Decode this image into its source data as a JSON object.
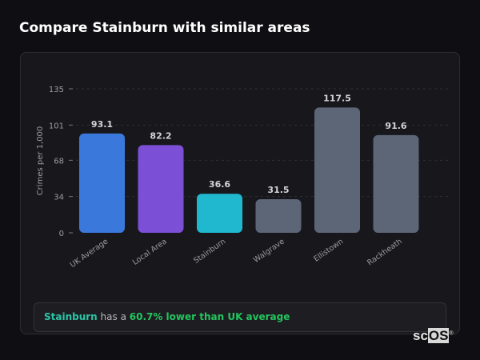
{
  "page_title": "Compare Stainburn with similar areas",
  "chart_data": {
    "type": "bar",
    "title": "",
    "ylabel": "Crimes per 1,000",
    "xlabel": "",
    "ylim": [
      0,
      135
    ],
    "yticks": [
      0,
      34,
      68,
      101,
      135
    ],
    "grid": true,
    "categories": [
      "UK Average",
      "Local Area",
      "Stainburn",
      "Walgrave",
      "Ellistown",
      "Rackheath"
    ],
    "values": [
      93.1,
      82.2,
      36.6,
      31.5,
      117.5,
      91.6
    ],
    "data_labels": [
      "93.1",
      "82.2",
      "36.6",
      "31.5",
      "117.5",
      "91.6"
    ],
    "colors": [
      "#3b78dc",
      "#7b4fd6",
      "#1fb8cf",
      "#5d6676",
      "#5d6676",
      "#5d6676"
    ]
  },
  "insight": {
    "area": "Stainburn",
    "middle": " has a ",
    "comparison": "60.7% lower than UK average",
    "area_color": "#2bc4a7",
    "comparison_color": "#22c55e"
  },
  "logo": {
    "text_a": "sc",
    "text_b": "OS",
    "mark": "®"
  }
}
